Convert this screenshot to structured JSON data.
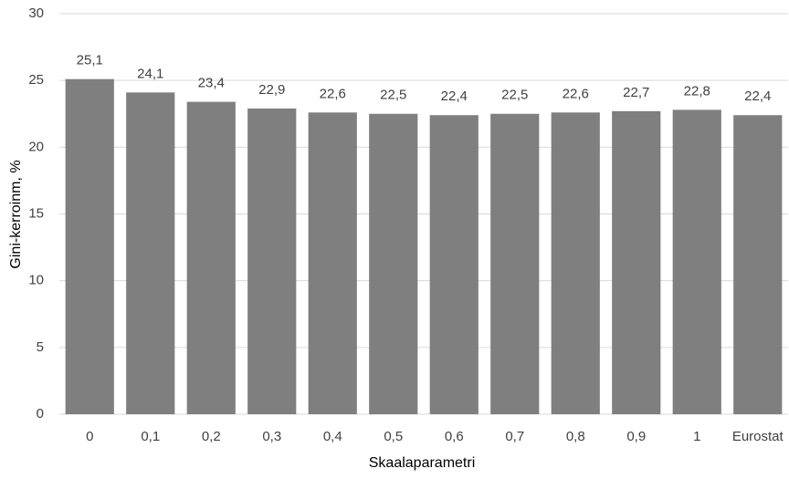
{
  "chart_data": {
    "type": "bar",
    "x_label": "Skaalaparametri",
    "y_label": "Gini-kerroinm, %",
    "categories": [
      "0",
      "0,1",
      "0,2",
      "0,3",
      "0,4",
      "0,5",
      "0,6",
      "0,7",
      "0,8",
      "0,9",
      "1",
      "Eurostat"
    ],
    "values": [
      25.1,
      24.1,
      23.4,
      22.9,
      22.6,
      22.5,
      22.4,
      22.5,
      22.6,
      22.7,
      22.8,
      22.4
    ],
    "value_labels": [
      "25,1",
      "24,1",
      "23,4",
      "22,9",
      "22,6",
      "22,5",
      "22,4",
      "22,5",
      "22,6",
      "22,7",
      "22,8",
      "22,4"
    ],
    "color": "#7f7f7f",
    "ylim": [
      0,
      30
    ],
    "yticks": [
      0,
      5,
      10,
      15,
      20,
      25,
      30
    ],
    "grid": true
  }
}
